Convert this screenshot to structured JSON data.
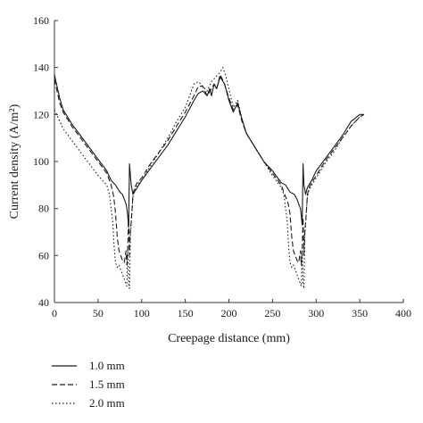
{
  "chart_data": {
    "type": "line",
    "title": "",
    "xlabel": "Creepage distance (mm)",
    "ylabel": "Current density (A/m²)",
    "xlim": [
      0,
      400
    ],
    "ylim": [
      40,
      160
    ],
    "xticks": [
      0,
      50,
      100,
      150,
      200,
      250,
      300,
      350,
      400
    ],
    "yticks": [
      40,
      60,
      80,
      100,
      120,
      140,
      160
    ],
    "grid": false,
    "legend": "bottom-left",
    "series": [
      {
        "name": "1.0 mm",
        "dash": "solid",
        "x": [
          0,
          3,
          6,
          10,
          20,
          30,
          40,
          50,
          60,
          65,
          70,
          75,
          78,
          80,
          82,
          83,
          84,
          85,
          86,
          88,
          90,
          95,
          100,
          110,
          120,
          130,
          140,
          150,
          160,
          165,
          170,
          175,
          178,
          180,
          183,
          186,
          190,
          195,
          200,
          205,
          210,
          215,
          220,
          230,
          240,
          250,
          260,
          265,
          270,
          275,
          278,
          280,
          282,
          283,
          284,
          285,
          286,
          288,
          290,
          295,
          300,
          310,
          320,
          330,
          340,
          350,
          355
        ],
        "y": [
          137,
          132,
          127,
          122,
          116,
          111,
          106,
          101,
          96,
          92,
          90,
          87,
          86,
          84,
          82,
          80,
          77,
          72,
          99,
          90,
          86,
          89,
          92,
          97,
          102,
          107,
          113,
          119,
          126,
          129,
          130,
          128,
          131,
          128,
          133,
          131,
          136,
          133,
          126,
          121,
          125,
          118,
          112,
          106,
          100,
          96,
          91,
          90,
          87,
          86,
          84,
          82,
          80,
          77,
          73,
          99,
          90,
          86,
          89,
          92,
          96,
          101,
          106,
          111,
          117,
          120,
          120
        ]
      },
      {
        "name": "1.5 mm",
        "dash": "dashed",
        "x": [
          0,
          3,
          6,
          10,
          20,
          30,
          40,
          50,
          60,
          65,
          68,
          70,
          72,
          74,
          76,
          78,
          80,
          82,
          83,
          84,
          85,
          86,
          87,
          88,
          90,
          92,
          95,
          100,
          110,
          120,
          130,
          140,
          150,
          160,
          165,
          170,
          175,
          180,
          183,
          186,
          190,
          195,
          200,
          205,
          210,
          215,
          220,
          230,
          240,
          250,
          260,
          265,
          268,
          270,
          272,
          274,
          276,
          278,
          280,
          282,
          283,
          284,
          285,
          286,
          287,
          288,
          290,
          292,
          295,
          300,
          310,
          320,
          330,
          340,
          350,
          355
        ],
        "y": [
          135,
          130,
          125,
          121,
          115,
          110,
          105,
          100,
          95,
          90,
          85,
          78,
          68,
          62,
          60,
          58,
          57,
          62,
          56,
          62,
          77,
          60,
          70,
          74,
          86,
          89,
          91,
          93,
          99,
          104,
          109,
          115,
          121,
          128,
          132,
          132,
          128,
          131,
          133,
          131,
          137,
          133,
          127,
          122,
          124,
          117,
          112,
          106,
          100,
          95,
          90,
          85,
          82,
          78,
          68,
          62,
          60,
          58,
          57,
          62,
          56,
          62,
          76,
          60,
          70,
          74,
          86,
          89,
          91,
          94,
          100,
          105,
          110,
          115,
          119,
          120
        ]
      },
      {
        "name": "2.0 mm",
        "dash": "dotted",
        "x": [
          0,
          5,
          10,
          20,
          30,
          40,
          50,
          60,
          63,
          65,
          67,
          68,
          70,
          72,
          74,
          76,
          78,
          80,
          82,
          83,
          84,
          85,
          86,
          87,
          88,
          90,
          92,
          95,
          100,
          110,
          120,
          130,
          140,
          150,
          155,
          160,
          165,
          170,
          175,
          180,
          185,
          190,
          193,
          196,
          200,
          205,
          210,
          215,
          220,
          230,
          240,
          250,
          260,
          263,
          265,
          267,
          268,
          270,
          272,
          274,
          276,
          278,
          280,
          282,
          283,
          284,
          285,
          286,
          287,
          288,
          290,
          292,
          295,
          300,
          310,
          320,
          330,
          340,
          350,
          355
        ],
        "y": [
          122,
          118,
          114,
          109,
          104,
          99,
          94,
          90,
          86,
          80,
          74,
          66,
          57,
          55,
          56,
          54,
          52,
          50,
          48,
          47,
          64,
          48,
          46,
          68,
          74,
          85,
          88,
          90,
          92,
          98,
          104,
          110,
          117,
          123,
          128,
          133,
          134,
          132,
          130,
          134,
          136,
          138,
          140,
          137,
          131,
          123,
          126,
          118,
          112,
          106,
          100,
          94,
          89,
          86,
          80,
          74,
          66,
          57,
          55,
          56,
          54,
          52,
          50,
          48,
          47,
          62,
          48,
          46,
          68,
          74,
          85,
          88,
          90,
          93,
          99,
          104,
          110,
          115,
          119,
          120
        ]
      }
    ]
  }
}
